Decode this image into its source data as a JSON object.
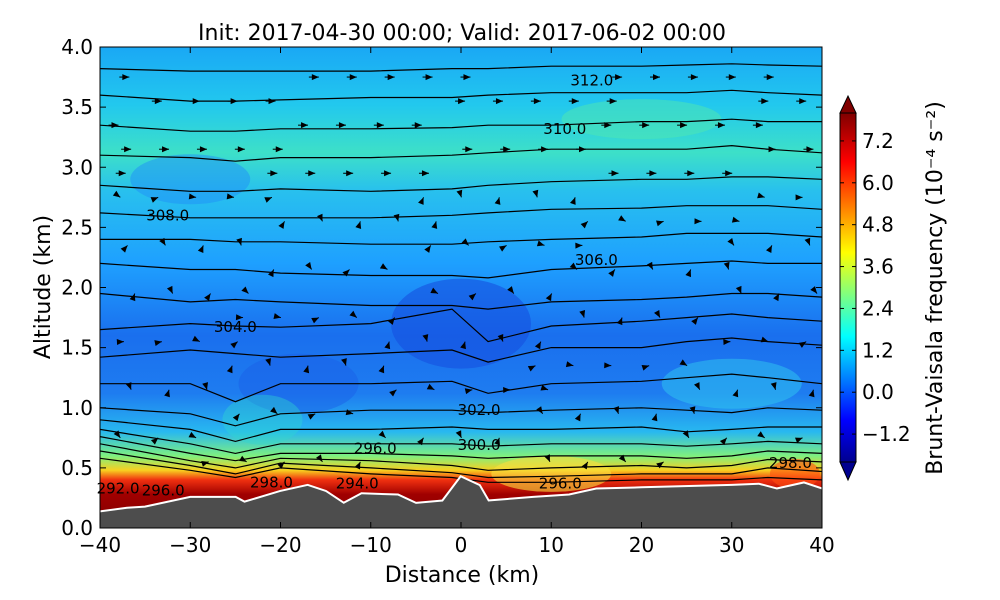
{
  "chart_data": {
    "type": "heatmap",
    "title": "Init: 2017-04-30 00:00; Valid: 2017-06-02 00:00",
    "xlabel": "Distance (km)",
    "ylabel": "Altitude (km)",
    "xlim": [
      -40,
      40
    ],
    "ylim": [
      0.0,
      4.0
    ],
    "xticks": [
      "−40",
      "−30",
      "−20",
      "−10",
      "0",
      "10",
      "20",
      "30",
      "40"
    ],
    "xtick_values": [
      -40,
      -30,
      -20,
      -10,
      0,
      10,
      20,
      30,
      40
    ],
    "yticks": [
      "0.0",
      "0.5",
      "1.0",
      "1.5",
      "2.0",
      "2.5",
      "3.0",
      "3.5",
      "4.0"
    ],
    "ytick_values": [
      0,
      0.5,
      1.0,
      1.5,
      2.0,
      2.5,
      3.0,
      3.5,
      4.0
    ],
    "colorbar": {
      "label": "Brunt-Vaisala frequency (10⁻⁴ s⁻²)",
      "range": [
        -2.0,
        8.0
      ],
      "ticks": [
        "7.2",
        "6.0",
        "4.8",
        "3.6",
        "2.4",
        "1.2",
        "0.0",
        "−1.2"
      ],
      "tick_values": [
        7.2,
        6.0,
        4.8,
        3.6,
        2.4,
        1.2,
        0.0,
        -1.2
      ],
      "colormap": "jet",
      "extend": "both"
    },
    "terrain": {
      "x": [
        -40,
        -37,
        -35,
        -30,
        -25,
        -24,
        -20,
        -17,
        -15,
        -13,
        -11,
        -7,
        -5,
        -2,
        0,
        2,
        3,
        8,
        12,
        15,
        20,
        30,
        33,
        35,
        38,
        40
      ],
      "z": [
        0.13,
        0.16,
        0.17,
        0.25,
        0.25,
        0.21,
        0.3,
        0.35,
        0.3,
        0.2,
        0.28,
        0.27,
        0.2,
        0.22,
        0.42,
        0.35,
        0.22,
        0.25,
        0.27,
        0.32,
        0.33,
        0.35,
        0.36,
        0.32,
        0.37,
        0.32
      ],
      "color": "#4d4d4d"
    },
    "contour_labels": [
      {
        "text": "312.0",
        "x": 14.5,
        "y": 3.72
      },
      {
        "text": "310.0",
        "x": 11.5,
        "y": 3.32
      },
      {
        "text": "308.0",
        "x": -32.5,
        "y": 2.6
      },
      {
        "text": "306.0",
        "x": 15,
        "y": 2.23
      },
      {
        "text": "304.0",
        "x": -25,
        "y": 1.67
      },
      {
        "text": "302.0",
        "x": 2,
        "y": 0.98
      },
      {
        "text": "300.0",
        "x": 2,
        "y": 0.69
      },
      {
        "text": "298.0",
        "x": -21,
        "y": 0.38
      },
      {
        "text": "298.0",
        "x": 36.5,
        "y": 0.54
      },
      {
        "text": "296.0",
        "x": 11,
        "y": 0.37
      },
      {
        "text": "292.0",
        "x": -38,
        "y": 0.33
      },
      {
        "text": "296.0",
        "x": -33,
        "y": 0.31
      },
      {
        "text": "294.0",
        "x": -11.5,
        "y": 0.37
      },
      {
        "text": "296.0",
        "x": -9.5,
        "y": 0.38
      }
    ],
    "contour_x": [
      -40,
      -30,
      -25,
      -20,
      -10,
      -1,
      3,
      10,
      20,
      25,
      30,
      34,
      40
    ],
    "contour_lines": [
      [
        0.58,
        0.48,
        0.42,
        0.5,
        0.45,
        0.42,
        0.38,
        0.38,
        0.4,
        0.4,
        0.4,
        0.42,
        0.4
      ],
      [
        0.64,
        0.52,
        0.45,
        0.54,
        0.5,
        0.46,
        0.42,
        0.43,
        0.45,
        0.45,
        0.45,
        0.5,
        0.47
      ],
      [
        0.7,
        0.56,
        0.5,
        0.58,
        0.56,
        0.52,
        0.48,
        0.5,
        0.52,
        0.5,
        0.52,
        0.57,
        0.55
      ],
      [
        0.76,
        0.62,
        0.56,
        0.62,
        0.62,
        0.6,
        0.58,
        0.6,
        0.6,
        0.58,
        0.6,
        0.64,
        0.62
      ],
      [
        0.82,
        0.7,
        0.62,
        0.7,
        0.7,
        0.7,
        0.68,
        0.7,
        0.7,
        0.68,
        0.7,
        0.72,
        0.7
      ],
      [
        0.9,
        0.82,
        0.72,
        0.82,
        0.82,
        0.84,
        0.82,
        0.82,
        0.84,
        0.8,
        0.82,
        0.84,
        0.84
      ],
      [
        1.0,
        0.95,
        0.85,
        0.95,
        0.98,
        0.98,
        0.96,
        0.98,
        1.0,
        0.98,
        0.96,
        1.0,
        0.98
      ],
      [
        1.2,
        1.2,
        1.05,
        1.2,
        1.2,
        1.22,
        1.12,
        1.2,
        1.22,
        1.25,
        1.28,
        1.25,
        1.2
      ],
      [
        1.42,
        1.48,
        1.45,
        1.42,
        1.45,
        1.48,
        1.38,
        1.5,
        1.5,
        1.55,
        1.58,
        1.55,
        1.52
      ],
      [
        1.65,
        1.7,
        1.68,
        1.67,
        1.7,
        1.82,
        1.55,
        1.68,
        1.72,
        1.75,
        1.78,
        1.75,
        1.72
      ],
      [
        1.95,
        1.88,
        1.9,
        1.88,
        1.85,
        1.85,
        1.82,
        1.88,
        1.9,
        1.92,
        1.95,
        1.95,
        1.92
      ],
      [
        2.2,
        2.15,
        2.15,
        2.12,
        2.1,
        2.1,
        2.08,
        2.15,
        2.18,
        2.2,
        2.22,
        2.2,
        2.2
      ],
      [
        2.4,
        2.4,
        2.38,
        2.38,
        2.36,
        2.36,
        2.38,
        2.4,
        2.42,
        2.45,
        2.45,
        2.45,
        2.42
      ],
      [
        2.62,
        2.58,
        2.58,
        2.58,
        2.58,
        2.6,
        2.62,
        2.65,
        2.66,
        2.68,
        2.68,
        2.68,
        2.65
      ],
      [
        2.85,
        2.8,
        2.8,
        2.82,
        2.8,
        2.82,
        2.85,
        2.88,
        2.9,
        2.9,
        2.92,
        2.92,
        2.9
      ],
      [
        3.1,
        3.08,
        3.05,
        3.08,
        3.08,
        3.1,
        3.12,
        3.15,
        3.15,
        3.15,
        3.18,
        3.15,
        3.12
      ],
      [
        3.35,
        3.3,
        3.3,
        3.32,
        3.32,
        3.33,
        3.35,
        3.35,
        3.38,
        3.38,
        3.4,
        3.38,
        3.38
      ],
      [
        3.6,
        3.55,
        3.55,
        3.56,
        3.58,
        3.58,
        3.6,
        3.62,
        3.62,
        3.62,
        3.64,
        3.62,
        3.6
      ],
      [
        3.82,
        3.8,
        3.8,
        3.8,
        3.8,
        3.82,
        3.82,
        3.84,
        3.84,
        3.85,
        3.86,
        3.85,
        3.84
      ]
    ]
  }
}
